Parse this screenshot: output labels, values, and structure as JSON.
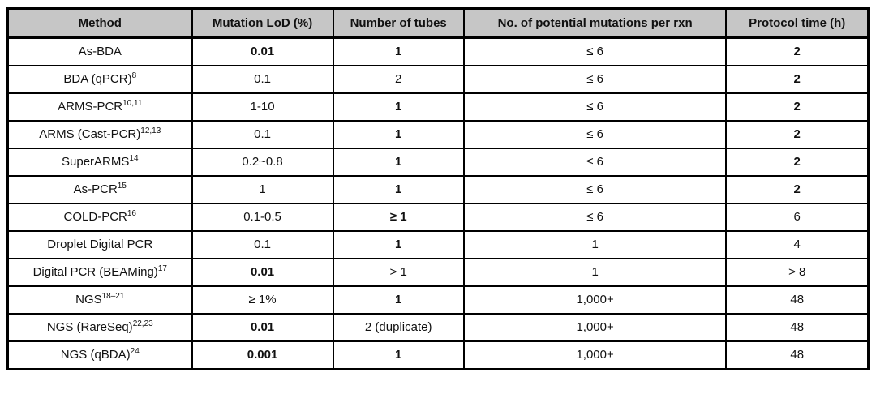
{
  "colors": {
    "header_bg": "#c6c6c6",
    "border": "#000000",
    "text": "#111111",
    "page_bg": "#ffffff"
  },
  "table": {
    "columns": [
      "Method",
      "Mutation LoD (%)",
      "Number of tubes",
      "No. of potential mutations per rxn",
      "Protocol time (h)"
    ],
    "rows": [
      {
        "method": {
          "text": "As-BDA",
          "sup": "",
          "bold": false
        },
        "lod": {
          "text": "0.01",
          "bold": true
        },
        "tubes": {
          "text": "1",
          "bold": true
        },
        "mutations": {
          "text": "≤ 6",
          "bold": false
        },
        "time": {
          "text": "2",
          "bold": true
        }
      },
      {
        "method": {
          "text": "BDA (qPCR)",
          "sup": "8",
          "bold": false
        },
        "lod": {
          "text": "0.1",
          "bold": false
        },
        "tubes": {
          "text": "2",
          "bold": false
        },
        "mutations": {
          "text": "≤ 6",
          "bold": false
        },
        "time": {
          "text": "2",
          "bold": true
        }
      },
      {
        "method": {
          "text": "ARMS-PCR",
          "sup": "10,11",
          "bold": false
        },
        "lod": {
          "text": "1-10",
          "bold": false
        },
        "tubes": {
          "text": "1",
          "bold": true
        },
        "mutations": {
          "text": "≤ 6",
          "bold": false
        },
        "time": {
          "text": "2",
          "bold": true
        }
      },
      {
        "method": {
          "text": "ARMS (Cast-PCR)",
          "sup": "12,13",
          "bold": false
        },
        "lod": {
          "text": "0.1",
          "bold": false
        },
        "tubes": {
          "text": "1",
          "bold": true
        },
        "mutations": {
          "text": "≤ 6",
          "bold": false
        },
        "time": {
          "text": "2",
          "bold": true
        }
      },
      {
        "method": {
          "text": "SuperARMS",
          "sup": "14",
          "bold": false
        },
        "lod": {
          "text": "0.2~0.8",
          "bold": false
        },
        "tubes": {
          "text": "1",
          "bold": true
        },
        "mutations": {
          "text": "≤ 6",
          "bold": false
        },
        "time": {
          "text": "2",
          "bold": true
        }
      },
      {
        "method": {
          "text": "As-PCR",
          "sup": "15",
          "bold": false
        },
        "lod": {
          "text": "1",
          "bold": false
        },
        "tubes": {
          "text": "1",
          "bold": true
        },
        "mutations": {
          "text": "≤ 6",
          "bold": false
        },
        "time": {
          "text": "2",
          "bold": true
        }
      },
      {
        "method": {
          "text": "COLD-PCR",
          "sup": "16",
          "bold": false
        },
        "lod": {
          "text": "0.1-0.5",
          "bold": false
        },
        "tubes": {
          "text": "≥ 1",
          "bold": true
        },
        "mutations": {
          "text": "≤ 6",
          "bold": false
        },
        "time": {
          "text": "6",
          "bold": false
        }
      },
      {
        "method": {
          "text": "Droplet Digital PCR",
          "sup": "",
          "bold": false
        },
        "lod": {
          "text": "0.1",
          "bold": false
        },
        "tubes": {
          "text": "1",
          "bold": true
        },
        "mutations": {
          "text": "1",
          "bold": false
        },
        "time": {
          "text": "4",
          "bold": false
        }
      },
      {
        "method": {
          "text": "Digital PCR (BEAMing)",
          "sup": "17",
          "bold": false
        },
        "lod": {
          "text": "0.01",
          "bold": true
        },
        "tubes": {
          "text": "> 1",
          "bold": false
        },
        "mutations": {
          "text": "1",
          "bold": false
        },
        "time": {
          "text": "> 8",
          "bold": false
        }
      },
      {
        "method": {
          "text": "NGS",
          "sup": "18–21",
          "bold": false
        },
        "lod": {
          "text": "≥ 1%",
          "bold": false
        },
        "tubes": {
          "text": "1",
          "bold": true
        },
        "mutations": {
          "text": "1,000+",
          "bold": false
        },
        "time": {
          "text": "48",
          "bold": false
        }
      },
      {
        "method": {
          "text": "NGS (RareSeq)",
          "sup": "22,23",
          "bold": false
        },
        "lod": {
          "text": "0.01",
          "bold": true
        },
        "tubes": {
          "text": "2 (duplicate)",
          "bold": false
        },
        "mutations": {
          "text": "1,000+",
          "bold": false
        },
        "time": {
          "text": "48",
          "bold": false
        }
      },
      {
        "method": {
          "text": "NGS (qBDA)",
          "sup": "24",
          "bold": false
        },
        "lod": {
          "text": "0.001",
          "bold": true
        },
        "tubes": {
          "text": "1",
          "bold": true
        },
        "mutations": {
          "text": "1,000+",
          "bold": false
        },
        "time": {
          "text": "48",
          "bold": false
        }
      }
    ]
  }
}
